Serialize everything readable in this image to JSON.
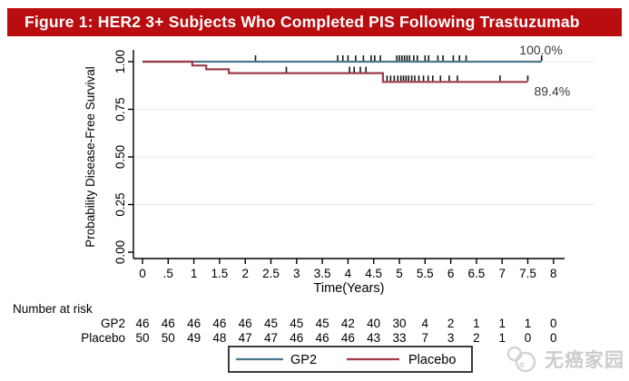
{
  "title_bar": {
    "text": "Figure 1: HER2 3+ Subjects Who Completed PIS Following Trastuzumab",
    "bg_color": "#b90d10",
    "text_color": "#ffffff"
  },
  "watermark": {
    "text": "无癌家园",
    "icon": "overlapping-circles-logo-icon",
    "color": "#cccccc"
  },
  "chart_data": {
    "type": "line",
    "subtype": "kaplan-meier-step",
    "title": "",
    "xlabel": "Time(Years)",
    "ylabel": "Probability Disease-Free Survival",
    "xlim": [
      0,
      8
    ],
    "ylim": [
      0,
      1
    ],
    "grid": true,
    "grid_color": "#e4ebe7",
    "x_ticks": [
      "0",
      ".5",
      "1",
      "1.5",
      "2",
      "2.5",
      "3",
      "3.5",
      "4",
      "4.5",
      "5",
      "5.5",
      "6",
      "6.5",
      "7",
      "7.5",
      "8"
    ],
    "x_tick_values": [
      0,
      0.5,
      1,
      1.5,
      2,
      2.5,
      3,
      3.5,
      4,
      4.5,
      5,
      5.5,
      6,
      6.5,
      7,
      7.5,
      8
    ],
    "y_ticks": [
      "0.00",
      "0.25",
      "0.50",
      "0.75",
      "1.00"
    ],
    "y_tick_values": [
      0,
      0.25,
      0.5,
      0.75,
      1
    ],
    "series": [
      {
        "name": "GP2",
        "color": "#4a778c",
        "end_label": "100.0%",
        "points": [
          [
            0,
            1.0
          ],
          [
            7.77,
            1.0
          ]
        ],
        "censors": [
          [
            2.2,
            1.0
          ],
          [
            3.8,
            1.0
          ],
          [
            3.9,
            1.0
          ],
          [
            4.0,
            1.0
          ],
          [
            4.15,
            1.0
          ],
          [
            4.3,
            1.0
          ],
          [
            4.45,
            1.0
          ],
          [
            4.52,
            1.0
          ],
          [
            4.63,
            1.0
          ],
          [
            4.95,
            1.0
          ],
          [
            5.0,
            1.0
          ],
          [
            5.05,
            1.0
          ],
          [
            5.1,
            1.0
          ],
          [
            5.15,
            1.0
          ],
          [
            5.2,
            1.0
          ],
          [
            5.28,
            1.0
          ],
          [
            5.35,
            1.0
          ],
          [
            5.5,
            1.0
          ],
          [
            5.57,
            1.0
          ],
          [
            5.75,
            1.0
          ],
          [
            5.85,
            1.0
          ],
          [
            6.05,
            1.0
          ],
          [
            6.17,
            1.0
          ],
          [
            6.3,
            1.0
          ],
          [
            7.77,
            1.0
          ]
        ]
      },
      {
        "name": "Placebo",
        "color": "#9e3c46",
        "end_label": "89.4%",
        "points": [
          [
            0,
            1.0
          ],
          [
            0.97,
            1.0
          ],
          [
            0.97,
            0.98
          ],
          [
            1.24,
            0.98
          ],
          [
            1.24,
            0.96
          ],
          [
            1.68,
            0.96
          ],
          [
            1.68,
            0.94
          ],
          [
            4.68,
            0.94
          ],
          [
            4.68,
            0.894
          ],
          [
            7.5,
            0.894
          ]
        ],
        "censors": [
          [
            2.8,
            0.94
          ],
          [
            4.03,
            0.94
          ],
          [
            4.12,
            0.94
          ],
          [
            4.24,
            0.94
          ],
          [
            4.35,
            0.94
          ],
          [
            4.76,
            0.894
          ],
          [
            4.83,
            0.894
          ],
          [
            4.9,
            0.894
          ],
          [
            4.97,
            0.894
          ],
          [
            5.03,
            0.894
          ],
          [
            5.08,
            0.894
          ],
          [
            5.13,
            0.894
          ],
          [
            5.18,
            0.894
          ],
          [
            5.24,
            0.894
          ],
          [
            5.3,
            0.894
          ],
          [
            5.38,
            0.894
          ],
          [
            5.47,
            0.894
          ],
          [
            5.56,
            0.894
          ],
          [
            5.65,
            0.894
          ],
          [
            5.8,
            0.894
          ],
          [
            5.97,
            0.894
          ],
          [
            6.13,
            0.894
          ],
          [
            6.96,
            0.894
          ],
          [
            7.5,
            0.894
          ]
        ]
      }
    ],
    "risk_table": {
      "title": "Number at risk",
      "rows": [
        {
          "label": "GP2",
          "values": [
            "46",
            "46",
            "46",
            "46",
            "46",
            "45",
            "45",
            "45",
            "42",
            "40",
            "30",
            "4",
            "2",
            "1",
            "1",
            "1",
            "0"
          ]
        },
        {
          "label": "Placebo",
          "values": [
            "50",
            "50",
            "49",
            "48",
            "47",
            "47",
            "46",
            "46",
            "46",
            "43",
            "33",
            "7",
            "3",
            "2",
            "1",
            "0",
            "0"
          ]
        }
      ]
    },
    "legend": {
      "position": "bottom",
      "entries": [
        "GP2",
        "Placebo"
      ]
    }
  }
}
